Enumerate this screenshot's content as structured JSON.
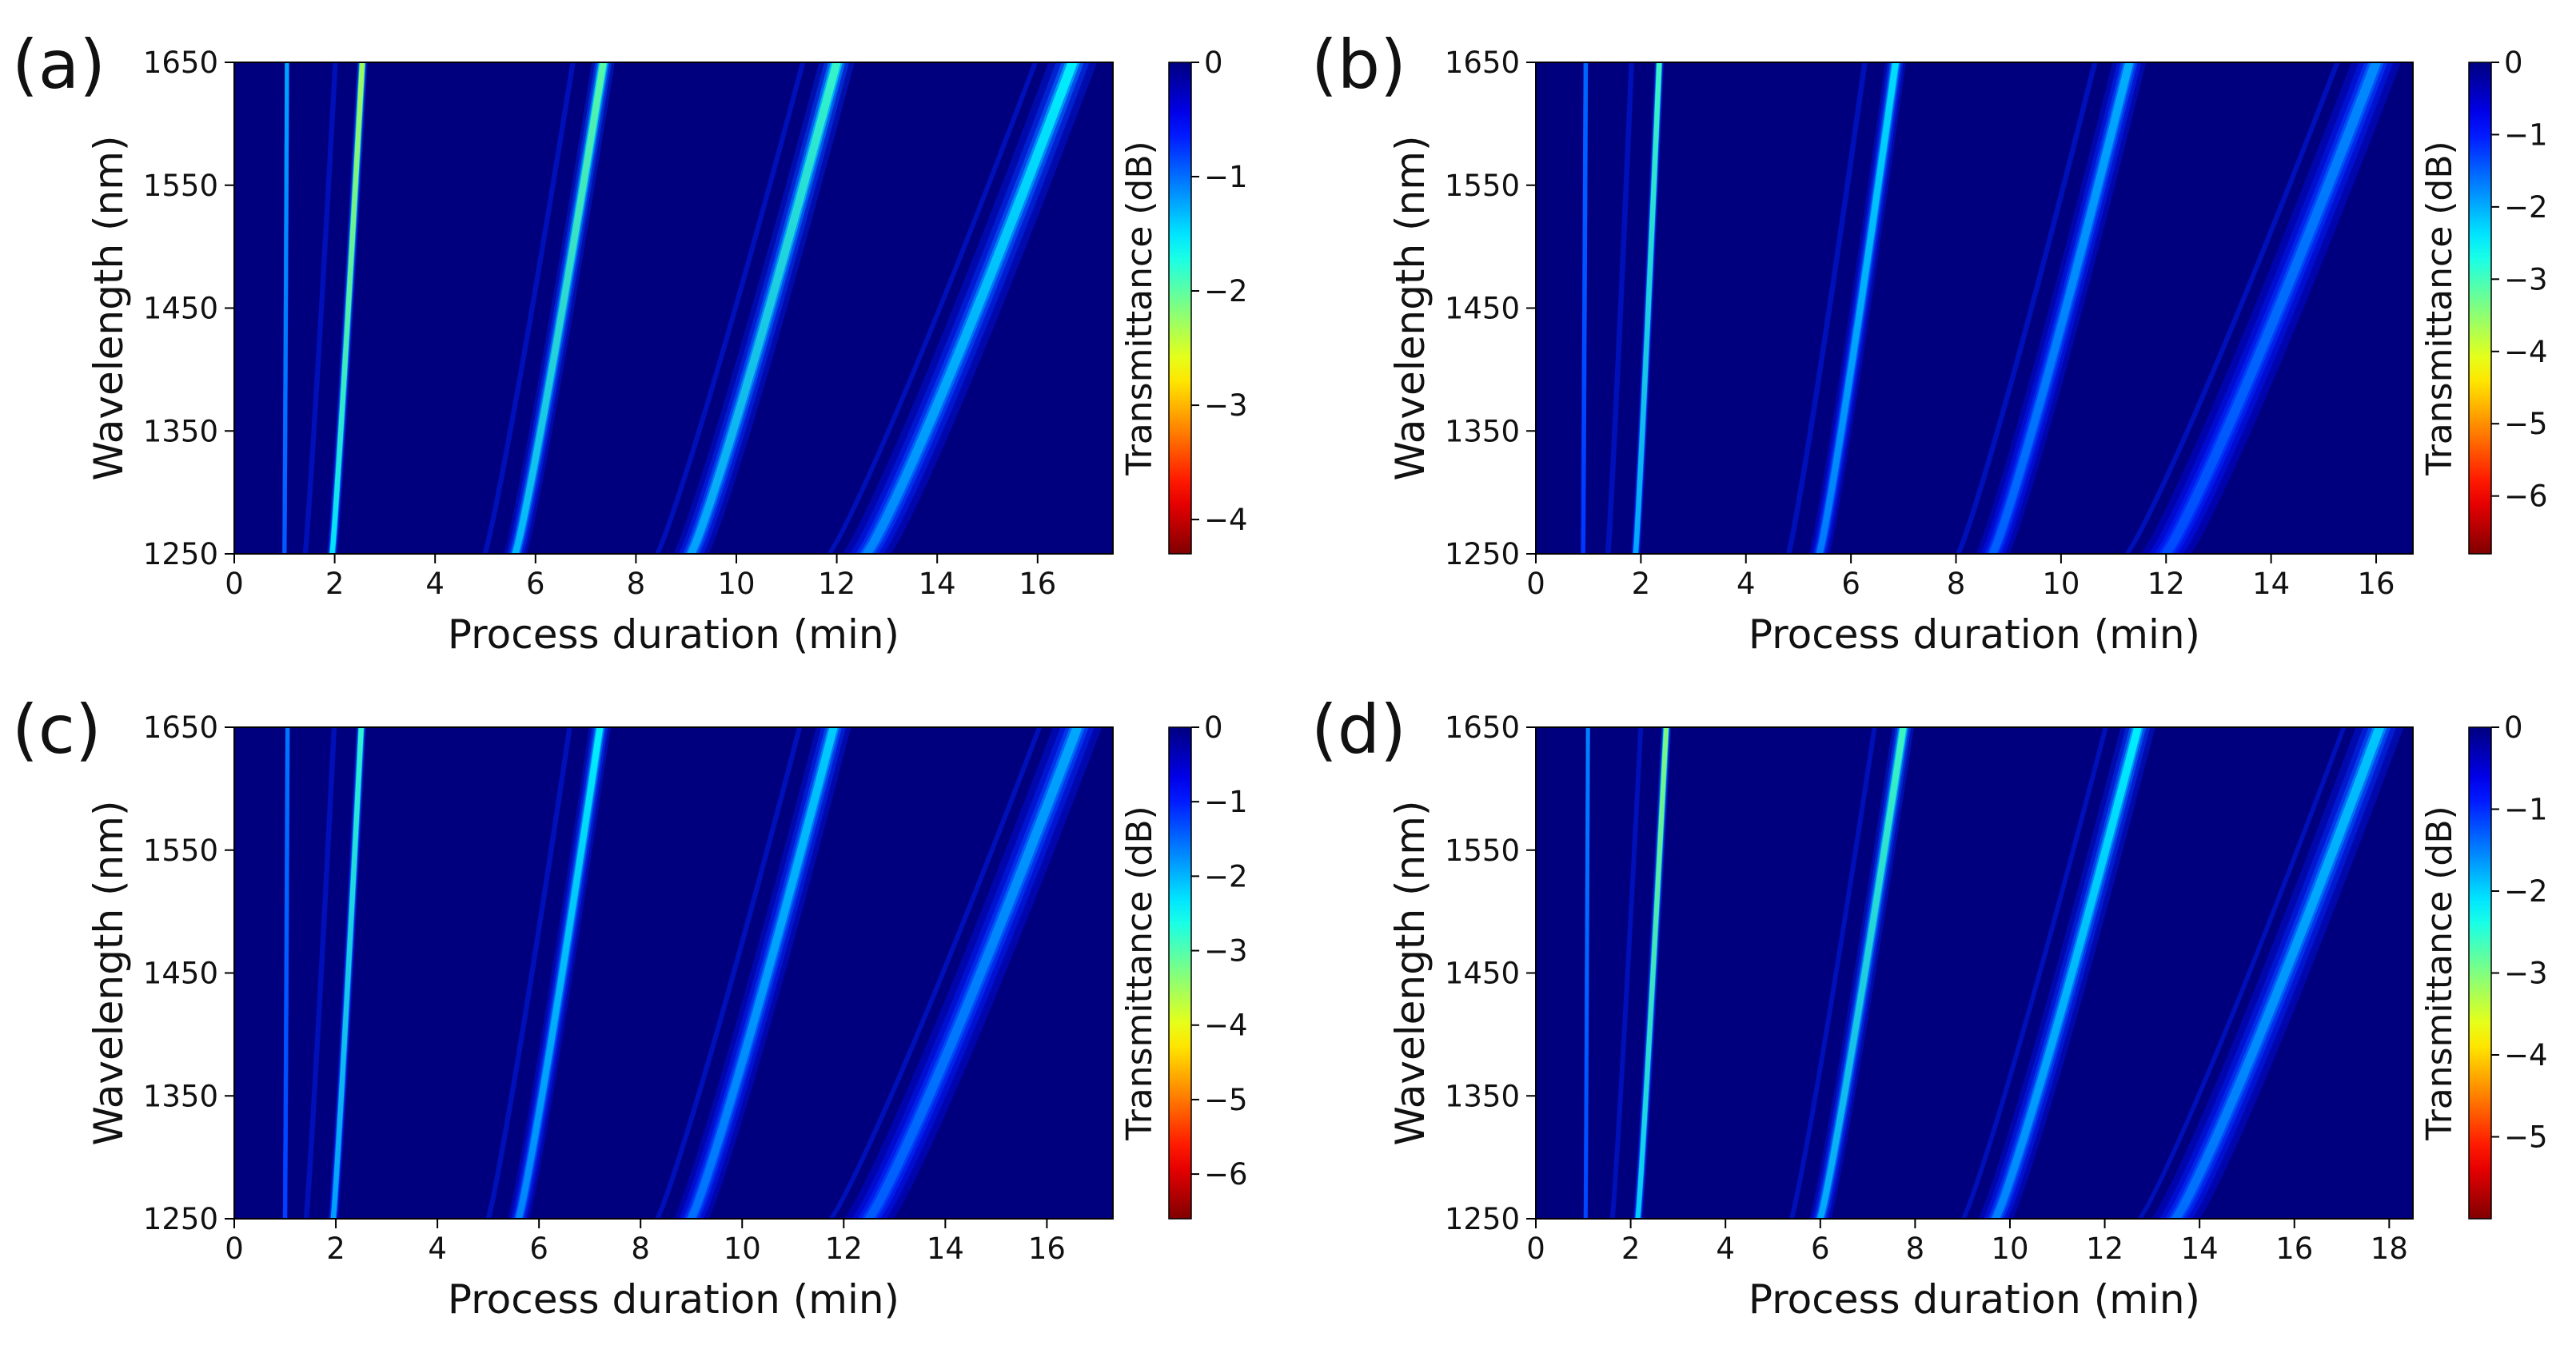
{
  "figure_description": "Four heatmaps of transmittance versus process duration and wavelength",
  "colors": {
    "colormap": "jet",
    "background": "#00007f"
  },
  "chart_data": [
    {
      "panel": "(a)",
      "type": "heatmap",
      "xlabel": "Process duration (min)",
      "ylabel": "Wavelength (nm)",
      "colorbar_label": "Transmittance (dB)",
      "xlim": [
        0,
        17.5
      ],
      "ylim": [
        1250,
        1650
      ],
      "xticks": [
        0,
        2,
        4,
        6,
        8,
        10,
        12,
        14,
        16
      ],
      "yticks": [
        1250,
        1350,
        1450,
        1550,
        1650
      ],
      "clim": [
        -4.3,
        0
      ],
      "cticks": [
        0,
        -1,
        -2,
        -3,
        -4
      ],
      "ridges": [
        {
          "x_bottom": 1.0,
          "x_top": 1.05,
          "min_db": -0.9
        },
        {
          "x_bottom": 1.95,
          "x_top": 2.55,
          "min_db": -2.2
        },
        {
          "x_bottom": 5.6,
          "x_top": 7.35,
          "min_db": -1.8
        },
        {
          "x_bottom": 9.1,
          "x_top": 12.0,
          "min_db": -1.6
        },
        {
          "x_bottom": 12.6,
          "x_top": 16.7,
          "min_db": -1.3
        }
      ]
    },
    {
      "panel": "(b)",
      "type": "heatmap",
      "xlabel": "Process duration (min)",
      "ylabel": "Wavelength (nm)",
      "colorbar_label": "Transmittance (dB)",
      "xlim": [
        0,
        16.7
      ],
      "ylim": [
        1250,
        1650
      ],
      "xticks": [
        0,
        2,
        4,
        6,
        8,
        10,
        12,
        14,
        16
      ],
      "yticks": [
        1250,
        1350,
        1450,
        1550,
        1650
      ],
      "clim": [
        -6.8,
        0
      ],
      "cticks": [
        0,
        -1,
        -2,
        -3,
        -4,
        -5,
        -6
      ],
      "ridges": [
        {
          "x_bottom": 0.9,
          "x_top": 0.95,
          "min_db": -0.9
        },
        {
          "x_bottom": 1.9,
          "x_top": 2.35,
          "min_db": -2.6
        },
        {
          "x_bottom": 5.4,
          "x_top": 6.85,
          "min_db": -1.9
        },
        {
          "x_bottom": 8.7,
          "x_top": 11.3,
          "min_db": -1.5
        },
        {
          "x_bottom": 12.0,
          "x_top": 16.0,
          "min_db": -1.2
        }
      ]
    },
    {
      "panel": "(c)",
      "type": "heatmap",
      "xlabel": "Process duration (min)",
      "ylabel": "Wavelength (nm)",
      "colorbar_label": "Transmittance (dB)",
      "xlim": [
        0,
        17.3
      ],
      "ylim": [
        1250,
        1650
      ],
      "xticks": [
        0,
        2,
        4,
        6,
        8,
        10,
        12,
        14,
        16
      ],
      "yticks": [
        1250,
        1350,
        1450,
        1550,
        1650
      ],
      "clim": [
        -6.6,
        0
      ],
      "cticks": [
        0,
        -1,
        -2,
        -3,
        -4,
        -5,
        -6
      ],
      "ridges": [
        {
          "x_bottom": 1.0,
          "x_top": 1.05,
          "min_db": -1.0
        },
        {
          "x_bottom": 1.95,
          "x_top": 2.5,
          "min_db": -2.4
        },
        {
          "x_bottom": 5.6,
          "x_top": 7.2,
          "min_db": -2.0
        },
        {
          "x_bottom": 9.0,
          "x_top": 11.8,
          "min_db": -1.7
        },
        {
          "x_bottom": 12.5,
          "x_top": 16.6,
          "min_db": -1.4
        }
      ]
    },
    {
      "panel": "(d)",
      "type": "heatmap",
      "xlabel": "Process duration (min)",
      "ylabel": "Wavelength (nm)",
      "colorbar_label": "Transmittance (dB)",
      "xlim": [
        0,
        18.5
      ],
      "ylim": [
        1250,
        1650
      ],
      "xticks": [
        0,
        2,
        4,
        6,
        8,
        10,
        12,
        14,
        16,
        18
      ],
      "yticks": [
        1250,
        1350,
        1450,
        1550,
        1650
      ],
      "clim": [
        -6.0,
        0
      ],
      "cticks": [
        0,
        -1,
        -2,
        -3,
        -4,
        -5
      ],
      "ridges": [
        {
          "x_bottom": 1.05,
          "x_top": 1.1,
          "min_db": -1.0
        },
        {
          "x_bottom": 2.15,
          "x_top": 2.75,
          "min_db": -2.8
        },
        {
          "x_bottom": 6.0,
          "x_top": 7.75,
          "min_db": -2.3
        },
        {
          "x_bottom": 9.7,
          "x_top": 12.7,
          "min_db": -1.8
        },
        {
          "x_bottom": 13.5,
          "x_top": 17.8,
          "min_db": -1.5
        }
      ]
    }
  ]
}
